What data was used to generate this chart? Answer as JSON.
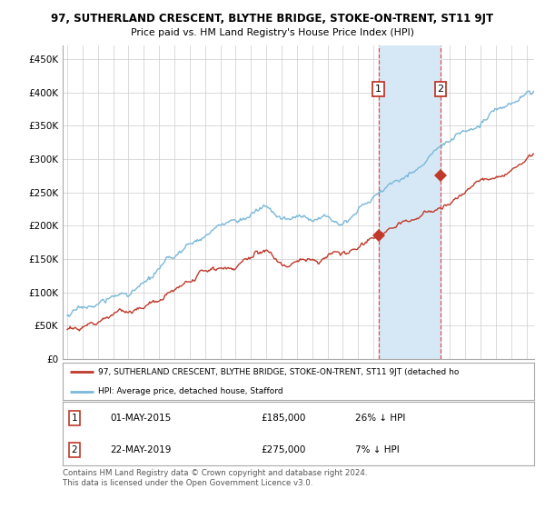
{
  "title": "97, SUTHERLAND CRESCENT, BLYTHE BRIDGE, STOKE-ON-TRENT, ST11 9JT",
  "subtitle": "Price paid vs. HM Land Registry's House Price Index (HPI)",
  "ylabel_ticks": [
    "£0",
    "£50K",
    "£100K",
    "£150K",
    "£200K",
    "£250K",
    "£300K",
    "£350K",
    "£400K",
    "£450K"
  ],
  "ytick_vals": [
    0,
    50000,
    100000,
    150000,
    200000,
    250000,
    300000,
    350000,
    400000,
    450000
  ],
  "ylim": [
    0,
    470000
  ],
  "xlim_start": 1994.7,
  "xlim_end": 2025.5,
  "transaction1_date": 2015.33,
  "transaction1_price": 185000,
  "transaction2_date": 2019.38,
  "transaction2_price": 275000,
  "legend_line1": "97, SUTHERLAND CRESCENT, BLYTHE BRIDGE, STOKE-ON-TRENT, ST11 9JT (detached ho",
  "legend_line2": "HPI: Average price, detached house, Stafford",
  "table_row1": [
    "1",
    "01-MAY-2015",
    "£185,000",
    "26% ↓ HPI"
  ],
  "table_row2": [
    "2",
    "22-MAY-2019",
    "£275,000",
    "7% ↓ HPI"
  ],
  "footnote": "Contains HM Land Registry data © Crown copyright and database right 2024.\nThis data is licensed under the Open Government Licence v3.0.",
  "hpi_color": "#7ab8d9",
  "price_color": "#c0392b",
  "shade_color": "#d6e8f5",
  "dashed_color": "#e05050",
  "background_color": "#ffffff",
  "grid_color": "#cccccc",
  "label_box_color": "#c0392b"
}
